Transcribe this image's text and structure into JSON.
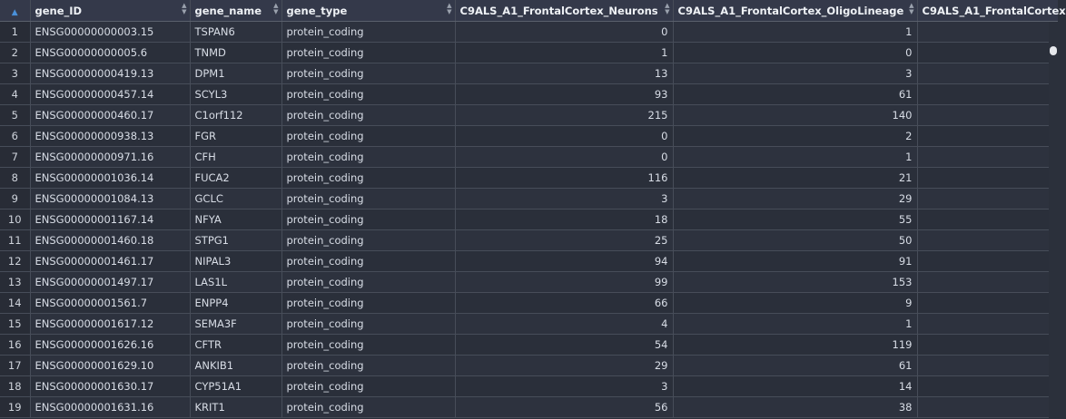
{
  "columns": [
    {
      "label": "",
      "sort_icon": "sort-asc-icon"
    },
    {
      "label": "gene_ID"
    },
    {
      "label": "gene_name"
    },
    {
      "label": "gene_type"
    },
    {
      "label": "C9ALS_A1_FrontalCortex_Neurons"
    },
    {
      "label": "C9ALS_A1_FrontalCortex_OligoLineage"
    },
    {
      "label": "C9ALS_A1_FrontalCortex"
    }
  ],
  "rows": [
    {
      "n": "1",
      "gene_ID": "ENSG00000000003.15",
      "gene_name": "TSPAN6",
      "gene_type": "protein_coding",
      "neurons": "0",
      "oligo": "1",
      "next": ""
    },
    {
      "n": "2",
      "gene_ID": "ENSG00000000005.6",
      "gene_name": "TNMD",
      "gene_type": "protein_coding",
      "neurons": "1",
      "oligo": "0",
      "next": ""
    },
    {
      "n": "3",
      "gene_ID": "ENSG00000000419.13",
      "gene_name": "DPM1",
      "gene_type": "protein_coding",
      "neurons": "13",
      "oligo": "3",
      "next": ""
    },
    {
      "n": "4",
      "gene_ID": "ENSG00000000457.14",
      "gene_name": "SCYL3",
      "gene_type": "protein_coding",
      "neurons": "93",
      "oligo": "61",
      "next": ""
    },
    {
      "n": "5",
      "gene_ID": "ENSG00000000460.17",
      "gene_name": "C1orf112",
      "gene_type": "protein_coding",
      "neurons": "215",
      "oligo": "140",
      "next": ""
    },
    {
      "n": "6",
      "gene_ID": "ENSG00000000938.13",
      "gene_name": "FGR",
      "gene_type": "protein_coding",
      "neurons": "0",
      "oligo": "2",
      "next": ""
    },
    {
      "n": "7",
      "gene_ID": "ENSG00000000971.16",
      "gene_name": "CFH",
      "gene_type": "protein_coding",
      "neurons": "0",
      "oligo": "1",
      "next": ""
    },
    {
      "n": "8",
      "gene_ID": "ENSG00000001036.14",
      "gene_name": "FUCA2",
      "gene_type": "protein_coding",
      "neurons": "116",
      "oligo": "21",
      "next": ""
    },
    {
      "n": "9",
      "gene_ID": "ENSG00000001084.13",
      "gene_name": "GCLC",
      "gene_type": "protein_coding",
      "neurons": "3",
      "oligo": "29",
      "next": ""
    },
    {
      "n": "10",
      "gene_ID": "ENSG00000001167.14",
      "gene_name": "NFYA",
      "gene_type": "protein_coding",
      "neurons": "18",
      "oligo": "55",
      "next": ""
    },
    {
      "n": "11",
      "gene_ID": "ENSG00000001460.18",
      "gene_name": "STPG1",
      "gene_type": "protein_coding",
      "neurons": "25",
      "oligo": "50",
      "next": ""
    },
    {
      "n": "12",
      "gene_ID": "ENSG00000001461.17",
      "gene_name": "NIPAL3",
      "gene_type": "protein_coding",
      "neurons": "94",
      "oligo": "91",
      "next": ""
    },
    {
      "n": "13",
      "gene_ID": "ENSG00000001497.17",
      "gene_name": "LAS1L",
      "gene_type": "protein_coding",
      "neurons": "99",
      "oligo": "153",
      "next": ""
    },
    {
      "n": "14",
      "gene_ID": "ENSG00000001561.7",
      "gene_name": "ENPP4",
      "gene_type": "protein_coding",
      "neurons": "66",
      "oligo": "9",
      "next": ""
    },
    {
      "n": "15",
      "gene_ID": "ENSG00000001617.12",
      "gene_name": "SEMA3F",
      "gene_type": "protein_coding",
      "neurons": "4",
      "oligo": "1",
      "next": ""
    },
    {
      "n": "16",
      "gene_ID": "ENSG00000001626.16",
      "gene_name": "CFTR",
      "gene_type": "protein_coding",
      "neurons": "54",
      "oligo": "119",
      "next": ""
    },
    {
      "n": "17",
      "gene_ID": "ENSG00000001629.10",
      "gene_name": "ANKIB1",
      "gene_type": "protein_coding",
      "neurons": "29",
      "oligo": "61",
      "next": ""
    },
    {
      "n": "18",
      "gene_ID": "ENSG00000001630.17",
      "gene_name": "CYP51A1",
      "gene_type": "protein_coding",
      "neurons": "3",
      "oligo": "14",
      "next": ""
    },
    {
      "n": "19",
      "gene_ID": "ENSG00000001631.16",
      "gene_name": "KRIT1",
      "gene_type": "protein_coding",
      "neurons": "56",
      "oligo": "38",
      "next": ""
    }
  ],
  "colors": {
    "background": "#2b303b",
    "header": "#34394a",
    "grid": "#474d59",
    "sort_arrow_active": "#4a90d9",
    "scrollbar_thumb": "#e6e8ec"
  }
}
